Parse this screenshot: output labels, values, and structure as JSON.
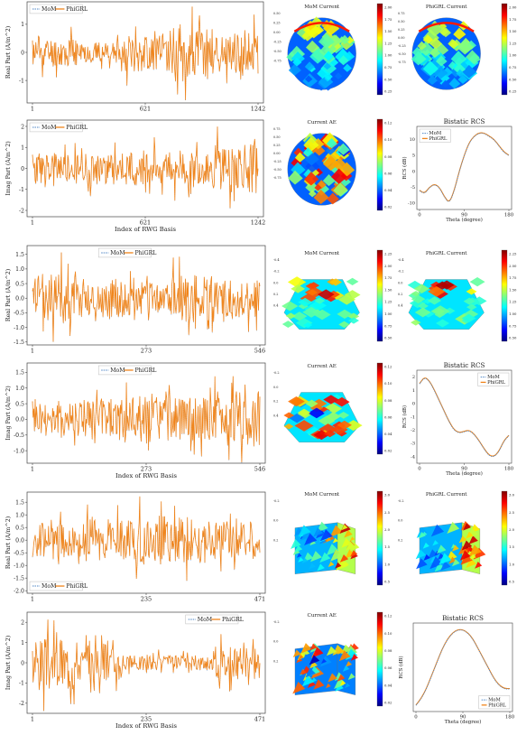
{
  "colors": {
    "mom": "#4f86c6",
    "phigrl": "#f0851c",
    "frame": "#444444"
  },
  "legend": {
    "mom": "MoM",
    "phigrl": "PhiGRL"
  },
  "chart_data": [
    {
      "type": "line",
      "id": "r1-real",
      "ylabel": "Real Part (A/m^2)",
      "xlabel": "",
      "xticks": [
        "1",
        "621",
        "1242"
      ],
      "yticks": [
        "-1",
        "0",
        "1"
      ],
      "ylim": [
        -1.8,
        1.8
      ],
      "n_basis": 1242,
      "amp": [
        0.7,
        0.5,
        0.9,
        1.4,
        1.0
      ],
      "seed": 11,
      "series": [
        {
          "name": "MoM"
        },
        {
          "name": "PhiGRL"
        }
      ],
      "legend": "top-left"
    },
    {
      "type": "line",
      "id": "r1-imag",
      "ylabel": "Imag Part (A/m^2)",
      "xlabel": "Index of RWG Basis",
      "xticks": [
        "1",
        "621",
        "1242"
      ],
      "yticks": [
        "-2",
        "-1",
        "0",
        "1",
        "2"
      ],
      "ylim": [
        -2.3,
        2.3
      ],
      "n_basis": 1242,
      "amp": [
        1.0,
        1.0,
        1.1,
        1.2,
        1.6
      ],
      "seed": 23,
      "series": [
        {
          "name": "MoM"
        },
        {
          "name": "PhiGRL"
        }
      ],
      "legend": "top-left"
    },
    {
      "type": "line",
      "id": "r2-real",
      "ylabel": "Real Part (A/m^2)",
      "xlabel": "",
      "xticks": [
        "1",
        "273",
        "546"
      ],
      "yticks": [
        "-1.5",
        "-1.0",
        "-0.5",
        "0.0",
        "0.5",
        "1.0",
        "1.5"
      ],
      "ylim": [
        -1.6,
        1.8
      ],
      "n_basis": 546,
      "amp": [
        1.2,
        0.9,
        0.8,
        1.1,
        0.9
      ],
      "seed": 37,
      "series": [
        {
          "name": "MoM"
        },
        {
          "name": "PhiGRL"
        }
      ],
      "legend": "top-center"
    },
    {
      "type": "line",
      "id": "r2-imag",
      "ylabel": "Imag Part (A/m^2)",
      "xlabel": "Index of RWG Basis",
      "xticks": [
        "1",
        "273",
        "546"
      ],
      "yticks": [
        "-1.0",
        "-0.5",
        "0.0",
        "0.5",
        "1.0",
        "1.5"
      ],
      "ylim": [
        -1.4,
        1.8
      ],
      "n_basis": 546,
      "amp": [
        0.8,
        0.9,
        1.1,
        0.9,
        1.2
      ],
      "seed": 41,
      "series": [
        {
          "name": "MoM"
        },
        {
          "name": "PhiGRL"
        }
      ],
      "legend": "top-center"
    },
    {
      "type": "line",
      "id": "r3-real",
      "ylabel": "Real Part (A/m^2)",
      "xlabel": "",
      "xticks": [
        "1",
        "235",
        "471"
      ],
      "yticks": [
        "-2.0",
        "-1.5",
        "-1.0",
        "-0.5",
        "0.0",
        "0.5",
        "1.0",
        "1.5"
      ],
      "ylim": [
        -2.1,
        1.9
      ],
      "n_basis": 471,
      "amp": [
        0.9,
        1.1,
        1.3,
        1.2,
        1.0
      ],
      "seed": 53,
      "series": [
        {
          "name": "MoM"
        },
        {
          "name": "PhiGRL"
        }
      ],
      "legend": "bottom-left"
    },
    {
      "type": "line",
      "id": "r3-imag",
      "ylabel": "Imag Part (A/m^2)",
      "xlabel": "Index of RWG Basis",
      "xticks": [
        "1",
        "235",
        "471"
      ],
      "yticks": [
        "-2",
        "-1",
        "0",
        "1",
        "2"
      ],
      "ylim": [
        -2.5,
        2.5
      ],
      "n_basis": 471,
      "amp": [
        1.8,
        1.2,
        0.5,
        0.5,
        1.1
      ],
      "seed": 67,
      "series": [
        {
          "name": "MoM"
        },
        {
          "name": "PhiGRL"
        }
      ],
      "legend": "top-right"
    },
    {
      "type": "heatmap",
      "id": "r1-mom",
      "title": "MoM Current",
      "shape": "sphere",
      "cbar_ticks": [
        "2.00",
        "1.75",
        "1.50",
        "1.25",
        "1.00",
        "0.75",
        "0.50",
        "0.25"
      ],
      "axis_ticks": [
        "0.50",
        "0.25",
        "0.00",
        "-0.25",
        "-0.50",
        "-0.75"
      ],
      "seed": 3
    },
    {
      "type": "heatmap",
      "id": "r1-phi",
      "title": "PhiGRL Current",
      "shape": "sphere",
      "cbar_ticks": [
        "2.00",
        "1.75",
        "1.50",
        "1.25",
        "1.00",
        "0.75",
        "0.50",
        "0.25"
      ],
      "axis_ticks": [
        "0.75",
        "0.50",
        "0.25",
        "0.00",
        "-0.25",
        "-0.50",
        "-0.75"
      ],
      "seed": 4
    },
    {
      "type": "heatmap",
      "id": "r1-ae",
      "title": "Current AE",
      "shape": "sphere-ae",
      "cbar_ticks": [
        "0.12",
        "0.10",
        "0.08",
        "0.06",
        "0.04",
        "0.02"
      ],
      "axis_ticks": [
        "0.75",
        "0.50",
        "0.25",
        "0.00",
        "-0.25",
        "-0.50",
        "-0.75"
      ],
      "seed": 5
    },
    {
      "type": "line",
      "id": "r1-rcs",
      "title": "Bistatic RCS",
      "xlabel": "Theta (degree)",
      "ylabel": "RCS (dB)",
      "xticks": [
        "0",
        "90",
        "180"
      ],
      "yticks": [
        "10",
        "5",
        "0",
        "-5",
        "-10"
      ],
      "x": [
        0,
        10,
        20,
        30,
        40,
        50,
        60,
        70,
        80,
        90,
        100,
        110,
        120,
        130,
        140,
        150,
        160,
        170,
        180
      ],
      "y": [
        -6,
        -7,
        -5,
        -4,
        -5,
        -8,
        -10,
        -6,
        0,
        5,
        9,
        11,
        12,
        12,
        11,
        10,
        8,
        6,
        5
      ],
      "ylim": [
        -12,
        14
      ],
      "series": [
        {
          "name": "MoM"
        },
        {
          "name": "PhiGRL"
        }
      ],
      "legend": "top-left"
    },
    {
      "type": "heatmap",
      "id": "r2-mom",
      "title": "MoM Current",
      "shape": "dome",
      "cbar_ticks": [
        "2.25",
        "2.00",
        "1.75",
        "1.50",
        "1.25",
        "1.00",
        "0.75",
        "0.50"
      ],
      "axis_ticks": [
        "-0.4",
        "-0.2",
        "0.0",
        "0.2",
        "0.4"
      ],
      "seed": 6
    },
    {
      "type": "heatmap",
      "id": "r2-phi",
      "title": "PhiGRL Current",
      "shape": "dome",
      "cbar_ticks": [
        "2.25",
        "2.00",
        "1.75",
        "1.50",
        "1.25",
        "1.00",
        "0.75",
        "0.50"
      ],
      "axis_ticks": [
        "-0.4",
        "-0.2",
        "0.0",
        "0.2",
        "0.4"
      ],
      "seed": 7
    },
    {
      "type": "heatmap",
      "id": "r2-ae",
      "title": "Current AE",
      "shape": "dome-ae",
      "cbar_ticks": [
        "0.12",
        "0.10",
        "0.08",
        "0.06",
        "0.04",
        "0.02"
      ],
      "axis_ticks": [
        "-0.2",
        "0.0",
        "0.2",
        "0.4"
      ],
      "seed": 8
    },
    {
      "type": "line",
      "id": "r2-rcs",
      "title": "Bistatic RCS",
      "xlabel": "Theta (degree)",
      "ylabel": "RCS (dB)",
      "xticks": [
        "0",
        "90",
        "180"
      ],
      "yticks": [
        "2",
        "1",
        "0",
        "-1",
        "-2",
        "-3",
        "-4"
      ],
      "x": [
        0,
        10,
        20,
        30,
        40,
        50,
        60,
        70,
        80,
        90,
        100,
        110,
        120,
        130,
        140,
        150,
        160,
        170,
        180
      ],
      "y": [
        1.5,
        2.0,
        1.7,
        1.0,
        0.2,
        -0.6,
        -1.4,
        -2.0,
        -2.2,
        -2.1,
        -2.0,
        -2.3,
        -2.8,
        -3.4,
        -3.9,
        -4.0,
        -3.6,
        -2.8,
        -2.4
      ],
      "ylim": [
        -4.5,
        2.5
      ],
      "series": [
        {
          "name": "MoM"
        },
        {
          "name": "PhiGRL"
        }
      ],
      "legend": "top-right"
    },
    {
      "type": "heatmap",
      "id": "r3-mom",
      "title": "MoM Current",
      "shape": "cube",
      "cbar_ticks": [
        "3.0",
        "2.5",
        "2.0",
        "1.5",
        "1.0",
        "0.5"
      ],
      "axis_ticks": [
        "-0.2",
        "0.0",
        "0.2"
      ],
      "seed": 9
    },
    {
      "type": "heatmap",
      "id": "r3-phi",
      "title": "PhiGRL Current",
      "shape": "cube",
      "cbar_ticks": [
        "3.0",
        "2.5",
        "2.0",
        "1.5",
        "1.0",
        "0.5"
      ],
      "axis_ticks": [
        "-0.2",
        "0.0",
        "0.2"
      ],
      "seed": 10
    },
    {
      "type": "heatmap",
      "id": "r3-ae",
      "title": "Current AE",
      "shape": "cube-ae",
      "cbar_ticks": [
        "0.12",
        "0.10",
        "0.08",
        "0.06",
        "0.04",
        "0.02"
      ],
      "axis_ticks": [
        "-0.2",
        "0.0",
        "0.2"
      ],
      "seed": 12
    },
    {
      "type": "line",
      "id": "r3-rcs",
      "title": "Bistatic RCS",
      "xlabel": "Theta (degree)",
      "ylabel": "RCS (dB)",
      "xticks": [
        "0",
        "90",
        "180"
      ],
      "yticks": [],
      "x": [
        0,
        10,
        20,
        30,
        40,
        50,
        60,
        70,
        80,
        90,
        100,
        110,
        120,
        130,
        140,
        150,
        160,
        170,
        180
      ],
      "y": [
        -10,
        -8,
        -5,
        -1,
        3,
        7,
        10,
        12,
        13,
        13,
        12,
        10,
        7,
        4,
        1,
        -2,
        -4,
        -5,
        -5
      ],
      "ylim": [
        -12,
        15
      ],
      "series": [
        {
          "name": "MoM"
        },
        {
          "name": "PhiGRL"
        }
      ],
      "legend": "bottom-right"
    }
  ]
}
